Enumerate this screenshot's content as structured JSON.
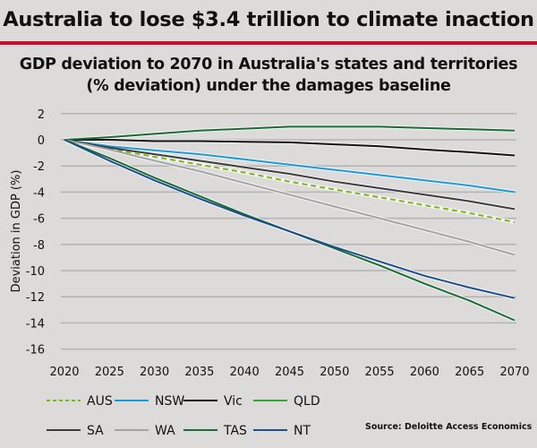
{
  "header": {
    "headline": "Australia to lose $3.4 trillion to climate inaction",
    "accent_color": "#c8102e"
  },
  "chart_data": {
    "type": "line",
    "title": "GDP deviation to 2070 in Australia's states and territories",
    "subtitle": "(% deviation) under the damages baseline",
    "xlabel": "",
    "ylabel": "Deviation in GDP (%)",
    "xlim": [
      2020,
      2070
    ],
    "ylim": [
      -16,
      2
    ],
    "x_ticks": [
      2020,
      2025,
      2030,
      2035,
      2040,
      2045,
      2050,
      2055,
      2060,
      2065,
      2070
    ],
    "y_ticks": [
      2,
      0,
      -2,
      -4,
      -6,
      -8,
      -10,
      -12,
      -14,
      -16
    ],
    "grid": true,
    "legend_position": "bottom",
    "source": "Source: Deloitte Access Economics",
    "x": [
      2020,
      2025,
      2030,
      2035,
      2040,
      2045,
      2050,
      2055,
      2060,
      2065,
      2070
    ],
    "series": [
      {
        "name": "AUS",
        "color": "#7ab51d",
        "dashed": true,
        "values": [
          0,
          -0.7,
          -1.3,
          -1.9,
          -2.5,
          -3.2,
          -3.8,
          -4.4,
          -5.0,
          -5.6,
          -6.3
        ]
      },
      {
        "name": "NSW",
        "color": "#1b9ad6",
        "dashed": false,
        "values": [
          0,
          -0.5,
          -0.8,
          -1.1,
          -1.5,
          -1.9,
          -2.3,
          -2.7,
          -3.1,
          -3.5,
          -4.0
        ]
      },
      {
        "name": "Vic",
        "color": "#111111",
        "dashed": false,
        "values": [
          0,
          0,
          -0.1,
          -0.1,
          -0.15,
          -0.2,
          -0.35,
          -0.5,
          -0.75,
          -0.95,
          -1.2
        ]
      },
      {
        "name": "QLD",
        "color": "#1a6b35",
        "dashed": false,
        "legend_color": "#3aa535",
        "values": [
          0,
          0.2,
          0.45,
          0.7,
          0.85,
          1.0,
          1.0,
          1.0,
          0.9,
          0.8,
          0.7
        ]
      },
      {
        "name": "SA",
        "color": "#3c3c3f",
        "dashed": false,
        "values": [
          0,
          -0.6,
          -1.1,
          -1.6,
          -2.1,
          -2.6,
          -3.2,
          -3.7,
          -4.2,
          -4.7,
          -5.3
        ]
      },
      {
        "name": "WA",
        "color": "#a3a3a3",
        "dashed": false,
        "values": [
          0,
          -0.75,
          -1.6,
          -2.4,
          -3.3,
          -4.2,
          -5.1,
          -6.0,
          -6.9,
          -7.8,
          -8.8
        ]
      },
      {
        "name": "TAS",
        "color": "#1a6b35",
        "dashed": false,
        "values": [
          0,
          -1.4,
          -2.9,
          -4.3,
          -5.7,
          -7.0,
          -8.3,
          -9.6,
          -11.0,
          -12.3,
          -13.8
        ]
      },
      {
        "name": "NT",
        "color": "#1c4d8c",
        "dashed": false,
        "values": [
          0,
          -1.6,
          -3.1,
          -4.5,
          -5.8,
          -7.0,
          -8.2,
          -9.3,
          -10.4,
          -11.3,
          -12.1
        ]
      }
    ]
  }
}
